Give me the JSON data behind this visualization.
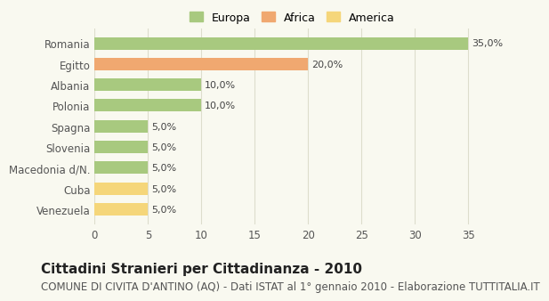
{
  "categories": [
    "Venezuela",
    "Cuba",
    "Macedonia d/N.",
    "Slovenia",
    "Spagna",
    "Polonia",
    "Albania",
    "Egitto",
    "Romania"
  ],
  "values": [
    5.0,
    5.0,
    5.0,
    5.0,
    5.0,
    10.0,
    10.0,
    20.0,
    35.0
  ],
  "colors": [
    "#f5d67a",
    "#f5d67a",
    "#a8c97f",
    "#a8c97f",
    "#a8c97f",
    "#a8c97f",
    "#a8c97f",
    "#f0a870",
    "#a8c97f"
  ],
  "continent": [
    "America",
    "America",
    "Europa",
    "Europa",
    "Europa",
    "Europa",
    "Europa",
    "Africa",
    "Europa"
  ],
  "xlim": [
    0,
    37
  ],
  "xticks": [
    0,
    5,
    10,
    15,
    20,
    25,
    30,
    35
  ],
  "legend_items": [
    {
      "label": "Europa",
      "color": "#a8c97f"
    },
    {
      "label": "Africa",
      "color": "#f0a870"
    },
    {
      "label": "America",
      "color": "#f5d67a"
    }
  ],
  "title": "Cittadini Stranieri per Cittadinanza - 2010",
  "subtitle": "COMUNE DI CIVITA D'ANTINO (AQ) - Dati ISTAT al 1° gennaio 2010 - Elaborazione TUTTITALIA.IT",
  "background_color": "#f9f9f0",
  "grid_color": "#ddddcc",
  "bar_label_fontsize": 8,
  "title_fontsize": 11,
  "subtitle_fontsize": 8.5
}
